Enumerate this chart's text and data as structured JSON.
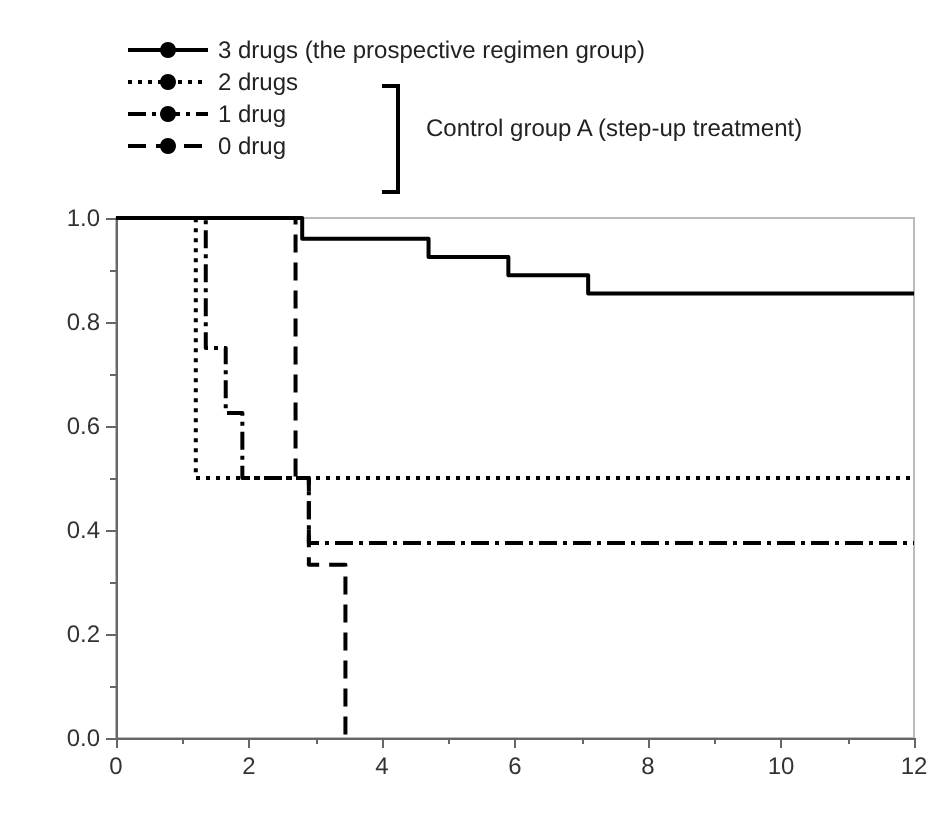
{
  "chart_data": {
    "type": "step",
    "series": [
      {
        "name": "3 drugs (the prospective regimen group)",
        "color": "#000000",
        "line_style": "solid",
        "x": [
          0,
          2.8,
          4.7,
          5.9,
          7.1,
          12
        ],
        "values": [
          1.0,
          0.96,
          0.925,
          0.89,
          0.855,
          0.855
        ]
      },
      {
        "name": "2 drugs",
        "color": "#000000",
        "line_style": "dotted",
        "x": [
          0,
          1.2,
          12
        ],
        "values": [
          1.0,
          0.5,
          0.5
        ]
      },
      {
        "name": "1 drug",
        "color": "#000000",
        "line_style": "dashdot",
        "x": [
          0,
          1.35,
          1.65,
          1.9,
          2.9,
          12
        ],
        "values": [
          1.0,
          0.75,
          0.625,
          0.5,
          0.375,
          0.375
        ]
      },
      {
        "name": "0 drug",
        "color": "#000000",
        "line_style": "dashed",
        "x": [
          0,
          2.7,
          2.9,
          3.45
        ],
        "values": [
          1.0,
          0.5,
          0.333,
          0
        ]
      }
    ],
    "xlim": [
      0,
      12
    ],
    "xticks": [
      0,
      2,
      4,
      6,
      8,
      10,
      12
    ],
    "ylim": [
      0,
      1.0
    ],
    "yticks": [
      {
        "value": 0,
        "label": "0.0"
      },
      {
        "value": 0.2,
        "label": "0.2"
      },
      {
        "value": 0.4,
        "label": "0.4"
      },
      {
        "value": 0.6,
        "label": "0.6"
      },
      {
        "value": 0.8,
        "label": "0.8"
      },
      {
        "value": 1.0,
        "label": "1.0"
      }
    ],
    "grid": false,
    "legend": "top left",
    "marker": "none",
    "annotations": [
      "Control group A (step-up treatment)"
    ]
  }
}
